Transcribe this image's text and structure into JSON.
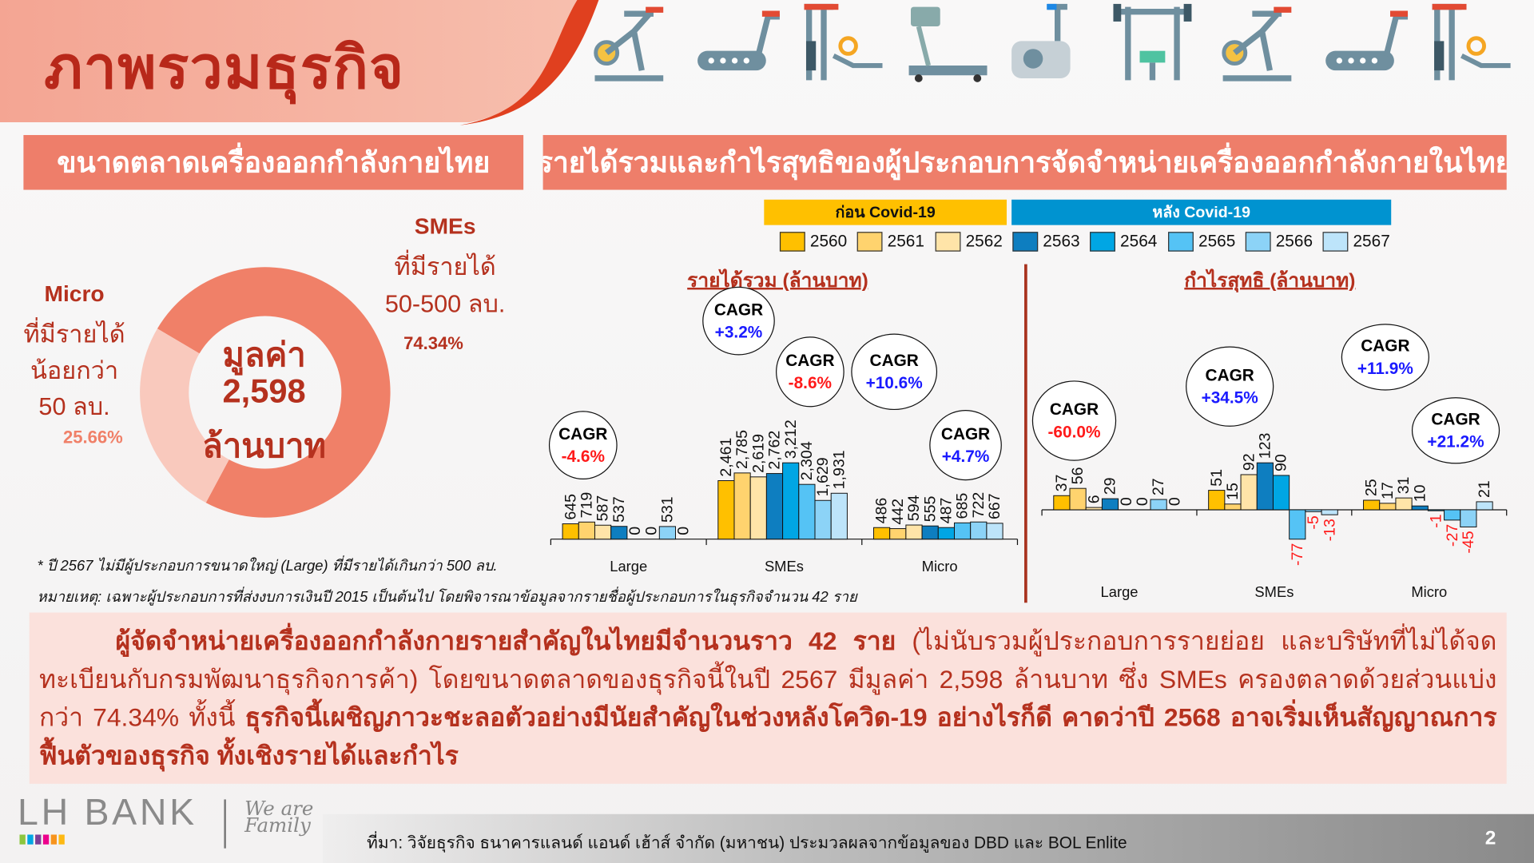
{
  "header": {
    "title": "ภาพรวมธุรกิจ"
  },
  "equipment_icons": [
    "exercise-bike-icon",
    "treadmill-icon",
    "cable-machine-icon",
    "running-machine-icon",
    "elliptical-icon",
    "bench-press-icon",
    "exercise-bike-icon",
    "treadmill-icon",
    "cable-machine-icon"
  ],
  "left_panel": {
    "heading": "ขนาดตลาดเครื่องออกกำลังกายไทย",
    "donut": {
      "center_line1": "มูลค่า",
      "center_line2": "2,598",
      "center_line3": "ล้านบาท",
      "segments": [
        {
          "name": "SMEs",
          "value": 74.34,
          "color": "#f08068"
        },
        {
          "name": "Micro",
          "value": 25.66,
          "color": "#f9c9bd"
        }
      ]
    },
    "micro_label": {
      "title": "Micro",
      "line1": "ที่มีรายได้",
      "line2": "น้อยกว่า",
      "line3": "50 ลบ.",
      "pct": "25.66%"
    },
    "smes_label": {
      "title": "SMEs",
      "line1": "ที่มีรายได้",
      "line2": "50-500 ลบ.",
      "pct": "74.34%"
    },
    "footnote1": "* ปี 2567 ไม่มีผู้ประกอบการขนาดใหญ่ (Large) ที่มีรายได้เกินกว่า 500 ลบ.",
    "footnote2": "หมายเหตุ: เฉพาะผู้ประกอบการที่ส่งงบการเงินปี 2015 เป็นต้นไป โดยพิจารณาข้อมูลจากรายชื่อผู้ประกอบการในธุรกิจจำนวน 42 ราย"
  },
  "right_panel": {
    "heading": "รายได้รวมและกำไรสุทธิของผู้ประกอบการจัดจำหน่ายเครื่องออกกำลังกายในไทย",
    "legend": {
      "before_label": "ก่อน Covid-19",
      "after_label": "หลัง Covid-19",
      "before_color": "#ffc000",
      "after_color": "#0093d0",
      "years": [
        {
          "label": "2560",
          "color": "#ffc000"
        },
        {
          "label": "2561",
          "color": "#ffd36e"
        },
        {
          "label": "2562",
          "color": "#ffe4a8"
        },
        {
          "label": "2563",
          "color": "#0e7ec0"
        },
        {
          "label": "2564",
          "color": "#00a6e4"
        },
        {
          "label": "2565",
          "color": "#55c3f5"
        },
        {
          "label": "2566",
          "color": "#8cd3f7"
        },
        {
          "label": "2567",
          "color": "#bde4fa"
        }
      ]
    }
  },
  "chart_data": [
    {
      "type": "bar",
      "title": "รายได้รวม (ล้านบาท)",
      "categories": [
        "Large",
        "SMEs",
        "Micro"
      ],
      "series": [
        {
          "name": "2560",
          "values": [
            645,
            2461,
            486
          ]
        },
        {
          "name": "2561",
          "values": [
            719,
            2785,
            442
          ]
        },
        {
          "name": "2562",
          "values": [
            587,
            2619,
            594
          ]
        },
        {
          "name": "2563",
          "values": [
            537,
            2762,
            555
          ]
        },
        {
          "name": "2564",
          "values": [
            0,
            3212,
            487
          ]
        },
        {
          "name": "2565",
          "values": [
            0,
            2304,
            685
          ]
        },
        {
          "name": "2566",
          "values": [
            531,
            1629,
            722
          ]
        },
        {
          "name": "2567",
          "values": [
            0,
            1931,
            667
          ]
        }
      ],
      "value_labels": [
        [
          "645",
          "2,461",
          "486"
        ],
        [
          "719",
          "2,785",
          "442"
        ],
        [
          "587",
          "2,619",
          "594"
        ],
        [
          "537",
          "2,762",
          "555"
        ],
        [
          "0",
          "3,212",
          "487"
        ],
        [
          "0",
          "2,304",
          "685"
        ],
        [
          "531",
          "1,629",
          "722"
        ],
        [
          "0",
          "1,931",
          "667"
        ]
      ],
      "cagr": [
        {
          "label": "CAGR",
          "value": "-4.6%",
          "sign": "neg"
        },
        {
          "label": "CAGR",
          "value": "+3.2%",
          "sign": "pos"
        },
        {
          "label": "CAGR",
          "value": "-8.6%",
          "sign": "neg"
        },
        {
          "label": "CAGR",
          "value": "+10.6%",
          "sign": "pos"
        },
        {
          "label": "CAGR",
          "value": "+4.7%",
          "sign": "pos"
        }
      ],
      "grid": false
    },
    {
      "type": "bar",
      "title": "กำไรสุทธิ (ล้านบาท)",
      "categories": [
        "Large",
        "SMEs",
        "Micro"
      ],
      "series": [
        {
          "name": "2560",
          "values": [
            37,
            51,
            25
          ]
        },
        {
          "name": "2561",
          "values": [
            56,
            15,
            17
          ]
        },
        {
          "name": "2562",
          "values": [
            6,
            92,
            31
          ]
        },
        {
          "name": "2563",
          "values": [
            29,
            123,
            10
          ]
        },
        {
          "name": "2564",
          "values": [
            0,
            90,
            -1
          ]
        },
        {
          "name": "2565",
          "values": [
            0,
            -77,
            -27
          ]
        },
        {
          "name": "2566",
          "values": [
            27,
            -5,
            -45
          ]
        },
        {
          "name": "2567",
          "values": [
            0,
            -13,
            21
          ]
        }
      ],
      "cagr": [
        {
          "label": "CAGR",
          "value": "-60.0%",
          "sign": "neg"
        },
        {
          "label": "CAGR",
          "value": "+34.5%",
          "sign": "pos"
        },
        {
          "label": "CAGR",
          "value": "+11.9%",
          "sign": "pos"
        },
        {
          "label": "CAGR",
          "value": "+21.2%",
          "sign": "pos"
        }
      ],
      "negative_label_color": "#ff1a1a",
      "grid": false
    }
  ],
  "summary": {
    "bold1": "ผู้จัดจำหน่ายเครื่องออกกำลังกายรายสำคัญในไทยมีจำนวนราว 42 ราย",
    "normal1": " (ไม่นับรวมผู้ประกอบการรายย่อย และบริษัทที่ไม่ได้จดทะเบียนกับกรมพัฒนาธุรกิจการค้า) โดยขนาดตลาดของธุรกิจนี้ในปี 2567 มีมูลค่า 2,598 ล้านบาท ซึ่ง SMEs ครองตลาดด้วยส่วนแบ่งกว่า 74.34% ทั้งนี้ ",
    "bold2": "ธุรกิจนี้เผชิญภาวะชะลอตัวอย่างมีนัยสำคัญในช่วงหลังโควิด-19 อย่างไรก็ดี คาดว่าปี 2568 อาจเริ่มเห็นสัญญาณการฟื้นตัวของธุรกิจ ทั้งเชิงรายได้และกำไร"
  },
  "footer": {
    "logo_text": "LH BANK",
    "tagline": "We are Family",
    "source": "ที่มา: วิจัยธุรกิจ ธนาคารแลนด์ แอนด์ เฮ้าส์ จำกัด (มหาชน) ประมวลผลจากข้อมูลของ DBD และ BOL Enlite",
    "page_number": "2"
  }
}
